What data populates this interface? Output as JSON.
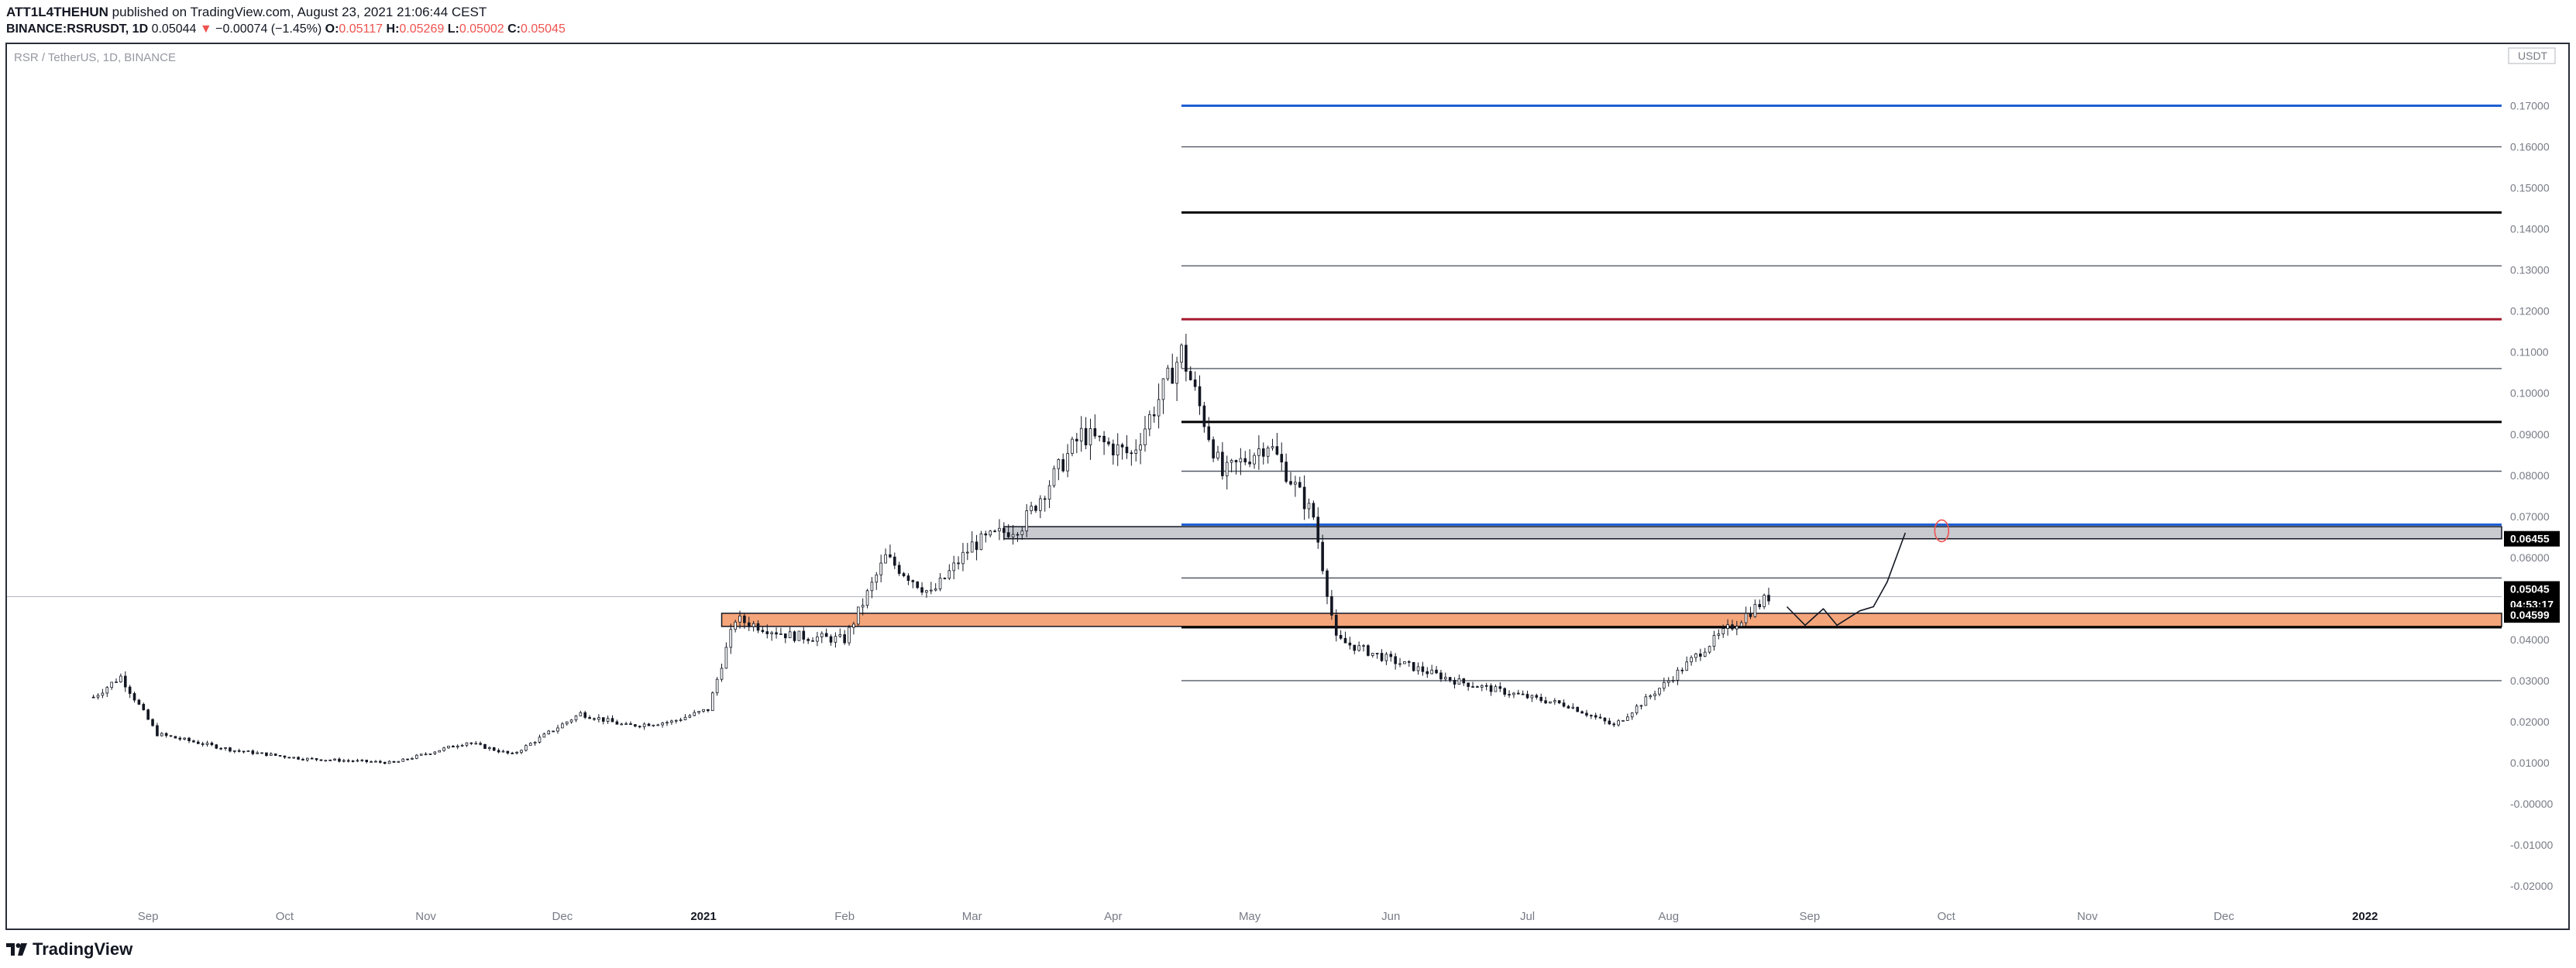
{
  "header": {
    "author": "ATT1L4THEHUN",
    "published": "published on TradingView.com, August 23, 2021 21:06:44 CEST",
    "symbol": "BINANCE:RSRUSDT, 1D",
    "last": "0.05044",
    "change_arrow": "▼",
    "change": "−0.00074 (−1.45%)",
    "o_label": "O:",
    "o_value": "0.05117",
    "h_label": "H:",
    "h_value": "0.05269",
    "l_label": "L:",
    "l_value": "0.05002",
    "c_label": "C:",
    "c_value": "0.05045"
  },
  "legend": "RSR / TetherUS, 1D, BINANCE",
  "currency_label": "USDT",
  "footer": {
    "brand": "TradingView"
  },
  "colors": {
    "accent_red": "#ef5350",
    "blue": "#1e5fd3",
    "dark_red": "#a51c30",
    "orange_zone": "#f5a57a",
    "gray_zone": "#c8cad0"
  },
  "chart_data": {
    "type": "candlestick",
    "title": "RSR / TetherUS, 1D, BINANCE",
    "x_ticks": [
      "Sep",
      "Oct",
      "Nov",
      "Dec",
      "2021",
      "Feb",
      "Mar",
      "Apr",
      "May",
      "Jun",
      "Jul",
      "Aug",
      "Sep",
      "Oct",
      "Nov",
      "Dec",
      "2022"
    ],
    "y_ticks": [
      "0.17000",
      "0.16000",
      "0.15000",
      "0.14000",
      "0.13000",
      "0.12000",
      "0.11000",
      "0.10000",
      "0.09000",
      "0.08000",
      "0.07000",
      "0.06000",
      "0.05000",
      "0.04000",
      "0.03000",
      "0.02000",
      "0.01000",
      "-0.00000",
      "-0.01000",
      "-0.02000"
    ],
    "ylim": [
      -0.023,
      0.185
    ],
    "price_path": [
      [
        "2020-08-20",
        0.026
      ],
      [
        "2020-08-26",
        0.031
      ],
      [
        "2020-09-03",
        0.017
      ],
      [
        "2020-09-20",
        0.013
      ],
      [
        "2020-10-05",
        0.011
      ],
      [
        "2020-10-25",
        0.01
      ],
      [
        "2020-11-10",
        0.015
      ],
      [
        "2020-11-20",
        0.012
      ],
      [
        "2020-12-05",
        0.022
      ],
      [
        "2020-12-15",
        0.019
      ],
      [
        "2020-12-25",
        0.02
      ],
      [
        "2021-01-02",
        0.023
      ],
      [
        "2021-01-08",
        0.045
      ],
      [
        "2021-01-20",
        0.041
      ],
      [
        "2021-02-01",
        0.04
      ],
      [
        "2021-02-10",
        0.06
      ],
      [
        "2021-02-20",
        0.051
      ],
      [
        "2021-03-01",
        0.063
      ],
      [
        "2021-03-12",
        0.068
      ],
      [
        "2021-03-25",
        0.09
      ],
      [
        "2021-04-05",
        0.085
      ],
      [
        "2021-04-16",
        0.11
      ],
      [
        "2021-04-25",
        0.08
      ],
      [
        "2021-05-05",
        0.088
      ],
      [
        "2021-05-15",
        0.07
      ],
      [
        "2021-05-20",
        0.04
      ],
      [
        "2021-06-01",
        0.035
      ],
      [
        "2021-06-15",
        0.03
      ],
      [
        "2021-07-01",
        0.026
      ],
      [
        "2021-07-10",
        0.024
      ],
      [
        "2021-07-20",
        0.019
      ],
      [
        "2021-08-01",
        0.03
      ],
      [
        "2021-08-10",
        0.039
      ],
      [
        "2021-08-23",
        0.05045
      ]
    ],
    "horizontal_levels": [
      {
        "price": 0.17,
        "color": "blue"
      },
      {
        "price": 0.16,
        "color": "gray"
      },
      {
        "price": 0.144,
        "color": "black"
      },
      {
        "price": 0.131,
        "color": "gray"
      },
      {
        "price": 0.118,
        "color": "dark_red"
      },
      {
        "price": 0.106,
        "color": "gray"
      },
      {
        "price": 0.093,
        "color": "black"
      },
      {
        "price": 0.081,
        "color": "gray"
      },
      {
        "price": 0.068,
        "color": "blue"
      },
      {
        "price": 0.055,
        "color": "gray"
      },
      {
        "price": 0.043,
        "color": "black"
      },
      {
        "price": 0.03,
        "color": "gray"
      }
    ],
    "zones": [
      {
        "name": "resistance-zone",
        "from": 0.06455,
        "to": 0.0675,
        "color": "gray_zone"
      },
      {
        "name": "support-zone",
        "from": 0.0432,
        "to": 0.0464,
        "color": "orange_zone"
      }
    ],
    "price_labels": [
      {
        "price": 0.06455,
        "text": "0.06455"
      },
      {
        "price": 0.05045,
        "text": "0.05045"
      },
      {
        "price": 0.05045,
        "text": "04:53:17"
      },
      {
        "price": 0.04599,
        "text": "0.04599"
      }
    ]
  }
}
